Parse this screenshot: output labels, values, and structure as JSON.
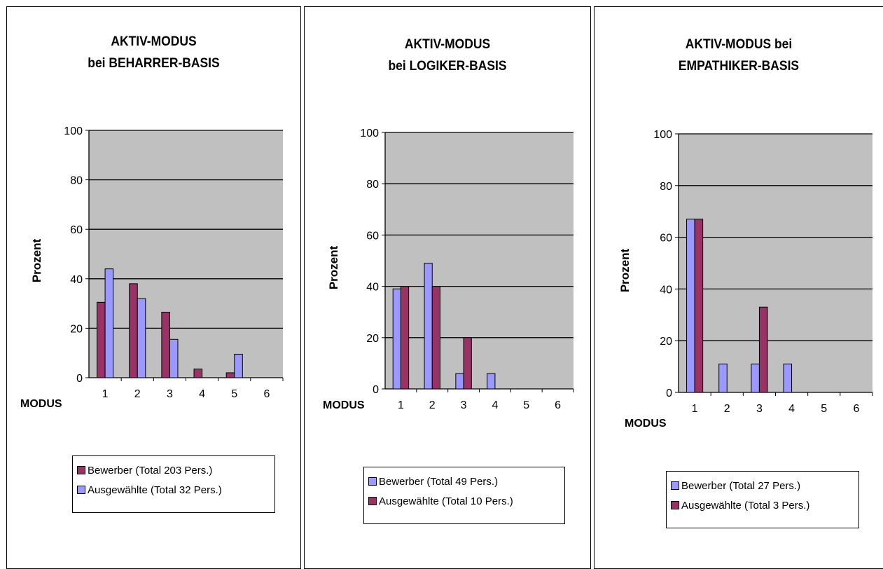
{
  "colors": {
    "bewerber_maroon": "#993366",
    "ausgewaehlte_blue": "#9999ff",
    "plot_bg": "#c0c0c0"
  },
  "chart_data": [
    {
      "type": "bar",
      "title_lines": [
        "AKTIV-MODUS",
        "bei BEHARRER-BASIS"
      ],
      "xlabel": "MODUS",
      "ylabel": "Prozent",
      "categories": [
        "1",
        "2",
        "3",
        "4",
        "5",
        "6"
      ],
      "ylim": [
        0,
        100
      ],
      "yticks": [
        "0",
        "20",
        "40",
        "60",
        "80",
        "100"
      ],
      "grid": true,
      "legend_position": "bottom",
      "series": [
        {
          "name": "Bewerber (Total 203 Pers.)",
          "color": "#993366",
          "values": [
            30.5,
            38,
            26.5,
            3.5,
            2,
            0
          ]
        },
        {
          "name": "Ausgewählte (Total 32 Pers.)",
          "color": "#9999ff",
          "values": [
            44,
            32,
            15.5,
            0,
            9.5,
            0
          ]
        }
      ]
    },
    {
      "type": "bar",
      "title_lines": [
        "AKTIV-MODUS",
        "bei LOGIKER-BASIS"
      ],
      "xlabel": "MODUS",
      "ylabel": "Prozent",
      "categories": [
        "1",
        "2",
        "3",
        "4",
        "5",
        "6"
      ],
      "ylim": [
        0,
        100
      ],
      "yticks": [
        "0",
        "20",
        "40",
        "60",
        "80",
        "100"
      ],
      "grid": true,
      "legend_position": "bottom",
      "series": [
        {
          "name": "Bewerber (Total 49 Pers.)",
          "color": "#9999ff",
          "values": [
            39,
            49,
            6,
            6,
            0,
            0
          ]
        },
        {
          "name": "Ausgewählte (Total 10 Pers.)",
          "color": "#993366",
          "values": [
            40,
            40,
            20,
            0,
            0,
            0
          ]
        }
      ]
    },
    {
      "type": "bar",
      "title_lines": [
        "AKTIV-MODUS bei",
        "EMPATHIKER-BASIS"
      ],
      "xlabel": "MODUS",
      "ylabel": "Prozent",
      "categories": [
        "1",
        "2",
        "3",
        "4",
        "5",
        "6"
      ],
      "ylim": [
        0,
        100
      ],
      "yticks": [
        "0",
        "20",
        "40",
        "60",
        "80",
        "100"
      ],
      "grid": true,
      "legend_position": "bottom",
      "series": [
        {
          "name": "Bewerber (Total 27 Pers.)",
          "color": "#9999ff",
          "values": [
            67,
            11,
            11,
            11,
            0,
            0
          ]
        },
        {
          "name": "Ausgewählte (Total 3 Pers.)",
          "color": "#993366",
          "values": [
            67,
            0,
            33,
            0,
            0,
            0
          ]
        }
      ]
    }
  ]
}
